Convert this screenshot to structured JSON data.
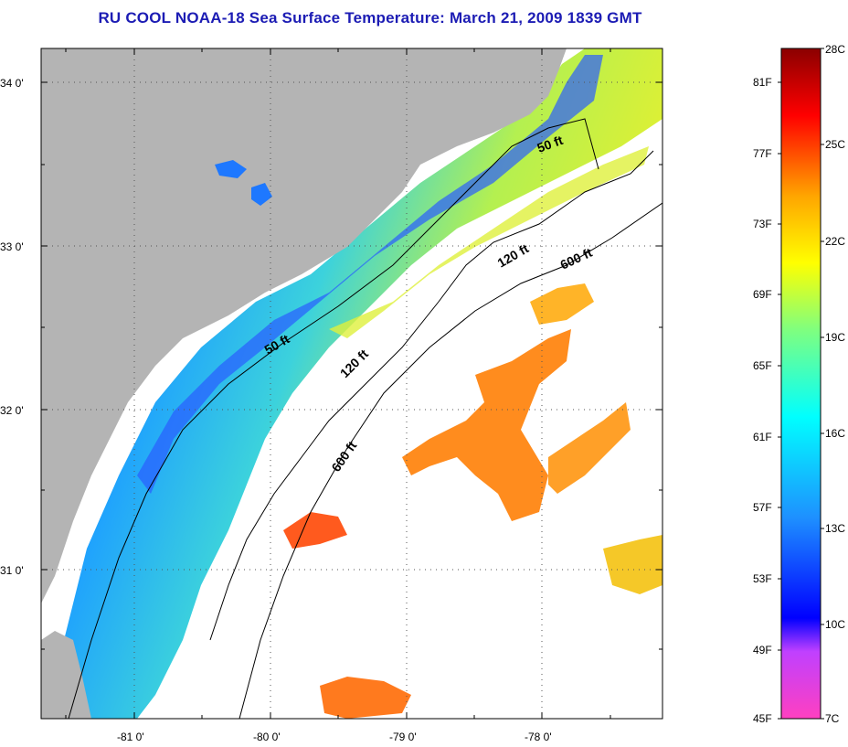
{
  "title": "RU COOL  NOAA-18  Sea Surface Temperature:  March 21, 2009 1839 GMT",
  "map": {
    "lat_labels": [
      "34 0'",
      "33 0'",
      "32 0'",
      "31 0'"
    ],
    "lon_labels": [
      "-81 0'",
      "-80 0'",
      "-79 0'",
      "-78 0'"
    ],
    "contour_labels": [
      {
        "id": "50ft-north",
        "text": "50 ft"
      },
      {
        "id": "120ft-north",
        "text": "120 ft"
      },
      {
        "id": "600ft-north",
        "text": "600 ft"
      },
      {
        "id": "50ft-south",
        "text": "50 ft"
      },
      {
        "id": "120ft-south",
        "text": "120 ft"
      },
      {
        "id": "600ft-south",
        "text": "600 ft"
      }
    ],
    "colors": {
      "land": "#b4b4b4",
      "cloud": "#ffffff",
      "frame": "#000000"
    }
  },
  "colorbar": {
    "fahrenheit_labels": [
      "81F",
      "77F",
      "73F",
      "69F",
      "65F",
      "61F",
      "57F",
      "53F",
      "49F",
      "45F"
    ],
    "celsius_labels": [
      "28C",
      "25C",
      "22C",
      "19C",
      "16C",
      "13C",
      "10C",
      "7C"
    ],
    "colors": [
      "#ff40c0",
      "#c040ff",
      "#0000ff",
      "#1e90ff",
      "#00ffff",
      "#7fff7f",
      "#ffff00",
      "#ffa500",
      "#ff0000",
      "#8b0000"
    ]
  }
}
